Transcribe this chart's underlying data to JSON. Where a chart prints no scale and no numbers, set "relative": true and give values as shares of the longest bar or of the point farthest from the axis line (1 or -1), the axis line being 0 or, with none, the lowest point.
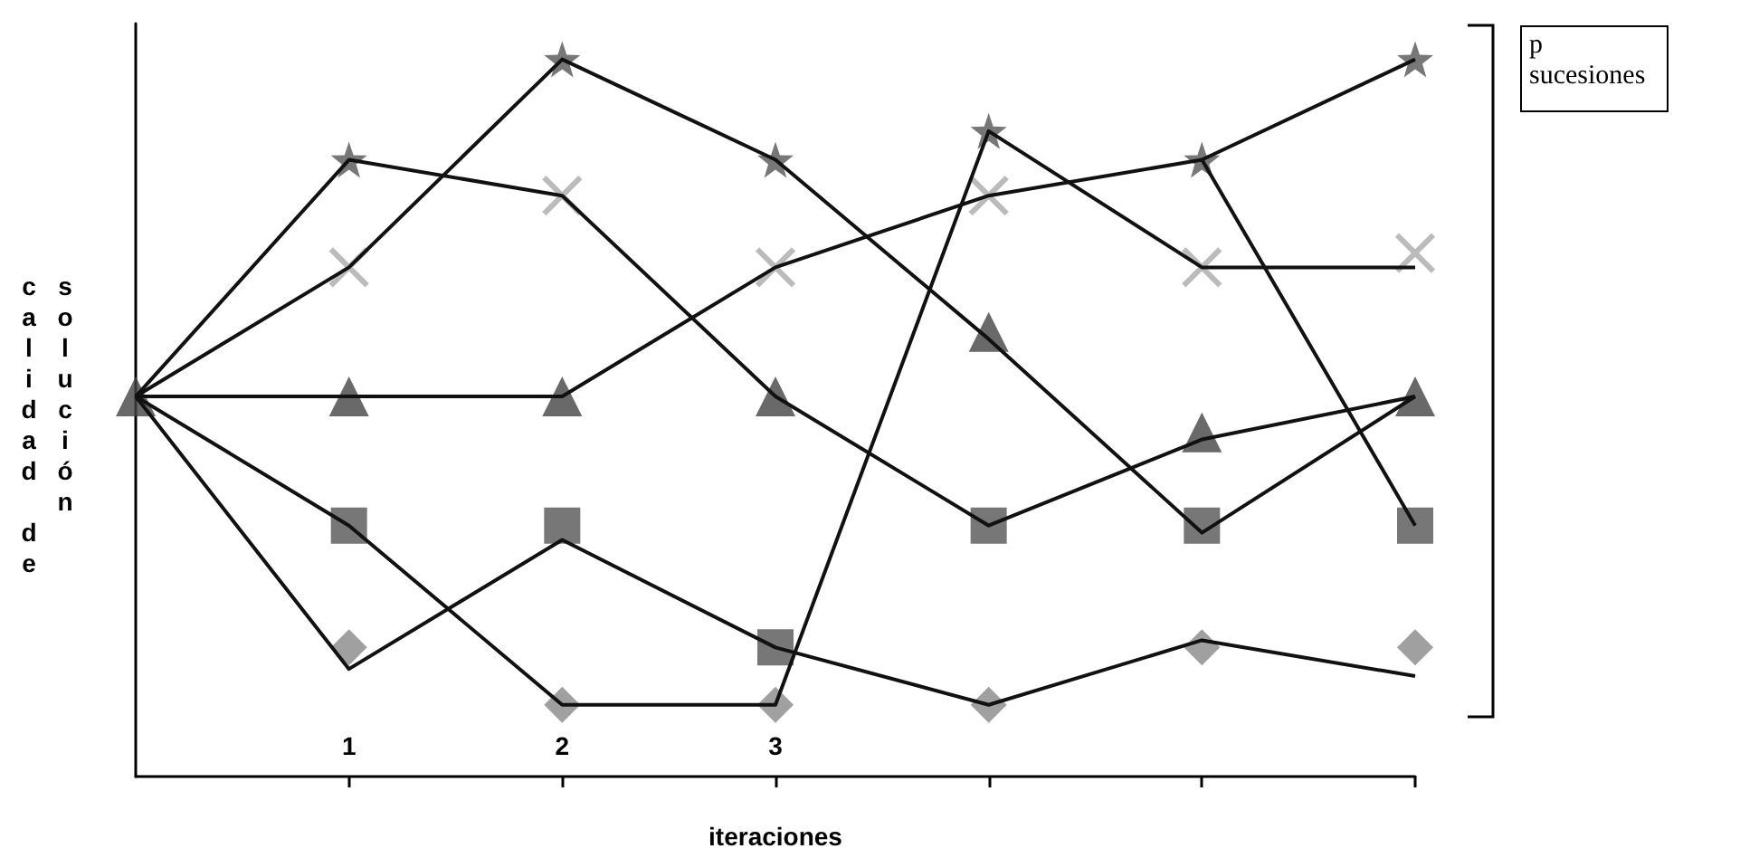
{
  "chart_data": {
    "type": "line",
    "relative": true,
    "xlabel": "iteraciones",
    "ylabel": "calidad de solución",
    "annotations": [
      "p sucesiones"
    ],
    "grid": false,
    "x": [
      0,
      1,
      2,
      3,
      4,
      5,
      6
    ],
    "xlim": [
      0,
      6
    ],
    "xticks": [
      1,
      2,
      3,
      {
        "value": 4,
        "label": null
      },
      {
        "value": 5,
        "label": null
      },
      {
        "value": 6,
        "label": null
      }
    ],
    "series": [
      {
        "color": "#111111",
        "marker": "none",
        "values": [
          0.53,
          0.86,
          0.81,
          0.53,
          0.35,
          0.47,
          0.53
        ]
      },
      {
        "color": "#111111",
        "marker": "none",
        "values": [
          0.53,
          0.71,
          1,
          0.86,
          0.61,
          0.34,
          0.53
        ]
      },
      {
        "color": "#111111",
        "marker": "none",
        "values": [
          0.53,
          0.53,
          0.53,
          0.71,
          0.81,
          0.86,
          1
        ]
      },
      {
        "color": "#111111",
        "marker": "none",
        "values": [
          0.53,
          0.35,
          0.1,
          0.1,
          0.9,
          0.71,
          0.71
        ]
      },
      {
        "color": "#111111",
        "marker": "none",
        "values": [
          0.53,
          0.15,
          0.33,
          0.18,
          0.1,
          0.19,
          0.14
        ]
      },
      {
        "color": "#111111",
        "marker": "none",
        "values": [
          null,
          null,
          null,
          null,
          null,
          0.86,
          0.35
        ]
      },
      {
        "type": "scatter",
        "color": "#555555",
        "marker": "star",
        "x": [
          1,
          2,
          3,
          4,
          5,
          6
        ],
        "values": [
          0.86,
          1,
          0.86,
          0.9,
          0.86,
          1
        ]
      },
      {
        "type": "scatter",
        "color": "#aaaaaa",
        "marker": "cross",
        "x": [
          1,
          2,
          3,
          4,
          5,
          6
        ],
        "values": [
          0.71,
          0.81,
          0.71,
          0.81,
          0.71,
          0.73
        ]
      },
      {
        "type": "scatter",
        "color": "#444444",
        "marker": "triangle",
        "x": [
          0,
          1,
          2,
          3,
          4,
          5,
          6
        ],
        "values": [
          0.53,
          0.53,
          0.53,
          0.53,
          0.62,
          0.48,
          0.53
        ]
      },
      {
        "type": "scatter",
        "color": "#555555",
        "marker": "square",
        "x": [
          1,
          2,
          3,
          4,
          5,
          6
        ],
        "values": [
          0.35,
          0.35,
          0.18,
          0.35,
          0.35,
          0.35
        ]
      },
      {
        "type": "scatter",
        "color": "#888888",
        "marker": "diamond",
        "x": [
          1,
          2,
          3,
          4,
          5,
          6
        ],
        "values": [
          0.18,
          0.1,
          0.1,
          0.1,
          0.18,
          0.18
        ]
      }
    ]
  }
}
